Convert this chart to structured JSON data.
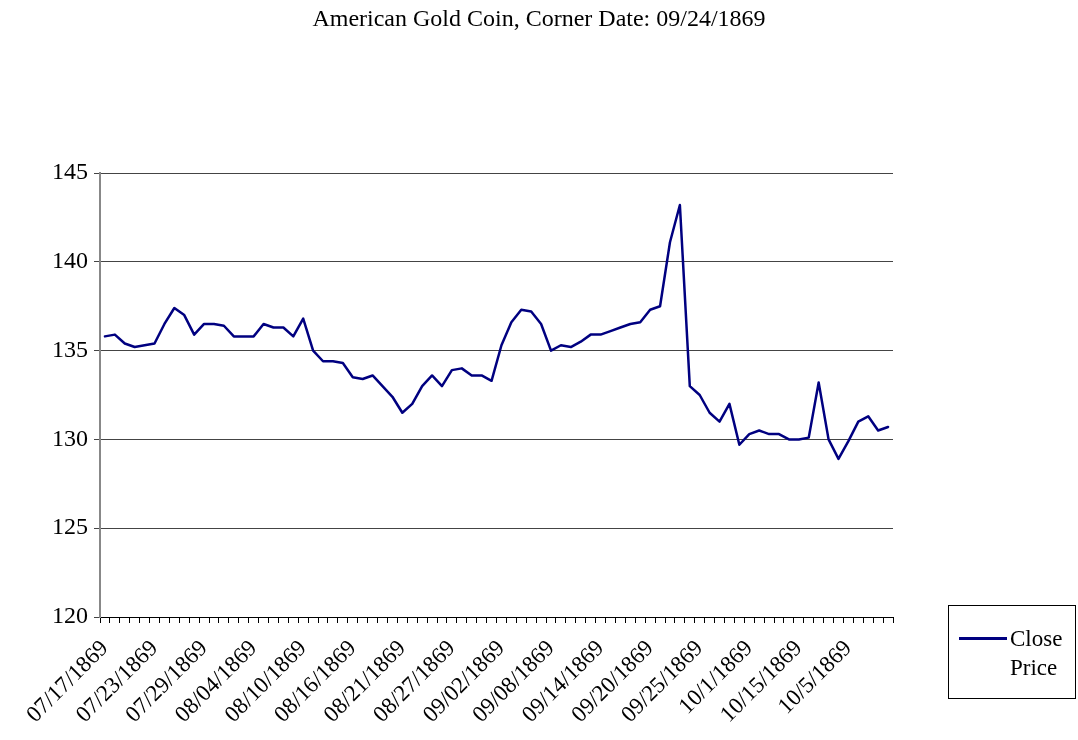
{
  "chart_data": {
    "type": "line",
    "title": "American Gold Coin, Corner Date: 09/24/1869",
    "categories": [
      "07/17/1869",
      null,
      null,
      null,
      null,
      "07/23/1869",
      null,
      null,
      null,
      null,
      "07/29/1869",
      null,
      null,
      null,
      null,
      "08/04/1869",
      null,
      null,
      null,
      null,
      "08/10/1869",
      null,
      null,
      null,
      null,
      "08/16/1869",
      null,
      null,
      null,
      null,
      "08/21/1869",
      null,
      null,
      null,
      null,
      "08/27/1869",
      null,
      null,
      null,
      null,
      "09/02/1869",
      null,
      null,
      null,
      null,
      "09/08/1869",
      null,
      null,
      null,
      null,
      "09/14/1869",
      null,
      null,
      null,
      null,
      "09/20/1869",
      null,
      null,
      null,
      null,
      "09/25/1869",
      null,
      null,
      null,
      null,
      "10/1/1869",
      null,
      null,
      null,
      null,
      "10/15/1869",
      null,
      null,
      null,
      null,
      "10/5/1869",
      null,
      null,
      null,
      null
    ],
    "series": [
      {
        "name": "Close Price",
        "color": "#000080",
        "values": [
          135.8,
          135.9,
          135.4,
          135.2,
          135.3,
          135.4,
          136.5,
          137.4,
          137.0,
          135.9,
          136.5,
          136.5,
          136.4,
          135.8,
          135.8,
          135.8,
          136.5,
          136.3,
          136.3,
          135.8,
          136.8,
          135.0,
          134.4,
          134.4,
          134.3,
          133.5,
          133.4,
          133.6,
          133.0,
          132.4,
          131.5,
          132.0,
          133.0,
          133.6,
          133.0,
          133.9,
          134.0,
          133.6,
          133.6,
          133.3,
          135.3,
          136.6,
          137.3,
          137.2,
          136.5,
          135.0,
          135.3,
          135.2,
          135.5,
          135.9,
          135.9,
          136.1,
          136.3,
          136.5,
          136.6,
          137.3,
          137.5,
          141.1,
          143.2,
          133.0,
          132.5,
          131.5,
          131.0,
          132.0,
          129.7,
          130.3,
          130.5,
          130.3,
          130.3,
          130.0,
          130.0,
          130.1,
          133.2,
          130.0,
          128.9,
          129.9,
          131.0,
          131.3,
          130.5,
          130.7
        ]
      }
    ],
    "ylim": [
      120,
      145
    ],
    "yticks": [
      120,
      125,
      130,
      135,
      140,
      145
    ],
    "grid": "y",
    "legend": "bottom right",
    "marker": "none",
    "line_style": "solid"
  }
}
